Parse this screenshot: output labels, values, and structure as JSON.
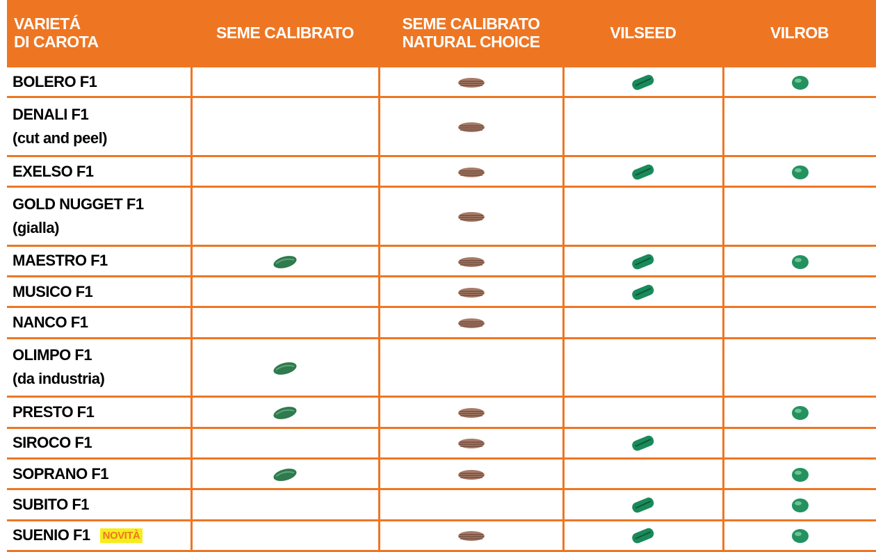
{
  "table": {
    "headers": [
      [
        "VARIETÁ",
        "DI CAROTA"
      ],
      [
        "SEME CALIBRATO"
      ],
      [
        "SEME CALIBRATO",
        "NATURAL CHOICE"
      ],
      [
        "VILSEED"
      ],
      [
        "VILROB"
      ]
    ],
    "rows": [
      {
        "name": [
          "BOLERO F1"
        ],
        "marks": [
          false,
          true,
          true,
          true
        ]
      },
      {
        "name": [
          "DENALI F1",
          "(cut and peel)"
        ],
        "marks": [
          false,
          true,
          false,
          false
        ]
      },
      {
        "name": [
          "EXELSO F1"
        ],
        "marks": [
          false,
          true,
          true,
          true
        ]
      },
      {
        "name": [
          "GOLD NUGGET F1",
          "(gialla)"
        ],
        "marks": [
          false,
          true,
          false,
          false
        ]
      },
      {
        "name": [
          "MAESTRO F1"
        ],
        "marks": [
          true,
          true,
          true,
          true
        ]
      },
      {
        "name": [
          "MUSICO F1"
        ],
        "marks": [
          false,
          true,
          true,
          false
        ]
      },
      {
        "name": [
          "NANCO F1"
        ],
        "marks": [
          false,
          true,
          false,
          false
        ]
      },
      {
        "name": [
          "OLIMPO F1",
          "(da industria)"
        ],
        "marks": [
          true,
          false,
          false,
          false
        ]
      },
      {
        "name": [
          "PRESTO F1"
        ],
        "marks": [
          true,
          true,
          false,
          true
        ]
      },
      {
        "name": [
          "SIROCO F1"
        ],
        "marks": [
          false,
          true,
          true,
          false
        ]
      },
      {
        "name": [
          "SOPRANO F1"
        ],
        "marks": [
          true,
          true,
          false,
          true
        ]
      },
      {
        "name": [
          "SUBITO F1"
        ],
        "marks": [
          false,
          false,
          true,
          true
        ]
      },
      {
        "name": [
          "SUENIO F1"
        ],
        "badge": "NOVITÀ",
        "marks": [
          false,
          true,
          true,
          true
        ]
      }
    ]
  }
}
